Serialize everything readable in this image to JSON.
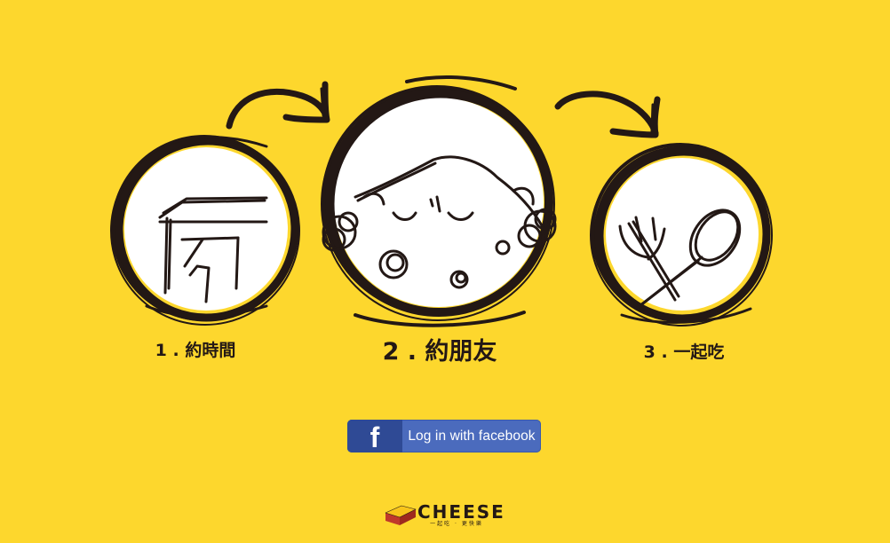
{
  "steps": [
    {
      "number": "1",
      "label": "1 . 約時間"
    },
    {
      "number": "2",
      "label": "2 . 約朋友"
    },
    {
      "number": "3",
      "label": "3 . 一起吃"
    }
  ],
  "login": {
    "icon_glyph": "f",
    "label": "Log in with facebook"
  },
  "brand": {
    "name": "CHEESE",
    "tagline": "一起吃 · 更快樂"
  },
  "colors": {
    "background": "#fdd72d",
    "ink": "#231815",
    "facebook_blue": "#4b6bbd",
    "facebook_dark": "#2f4a95"
  }
}
